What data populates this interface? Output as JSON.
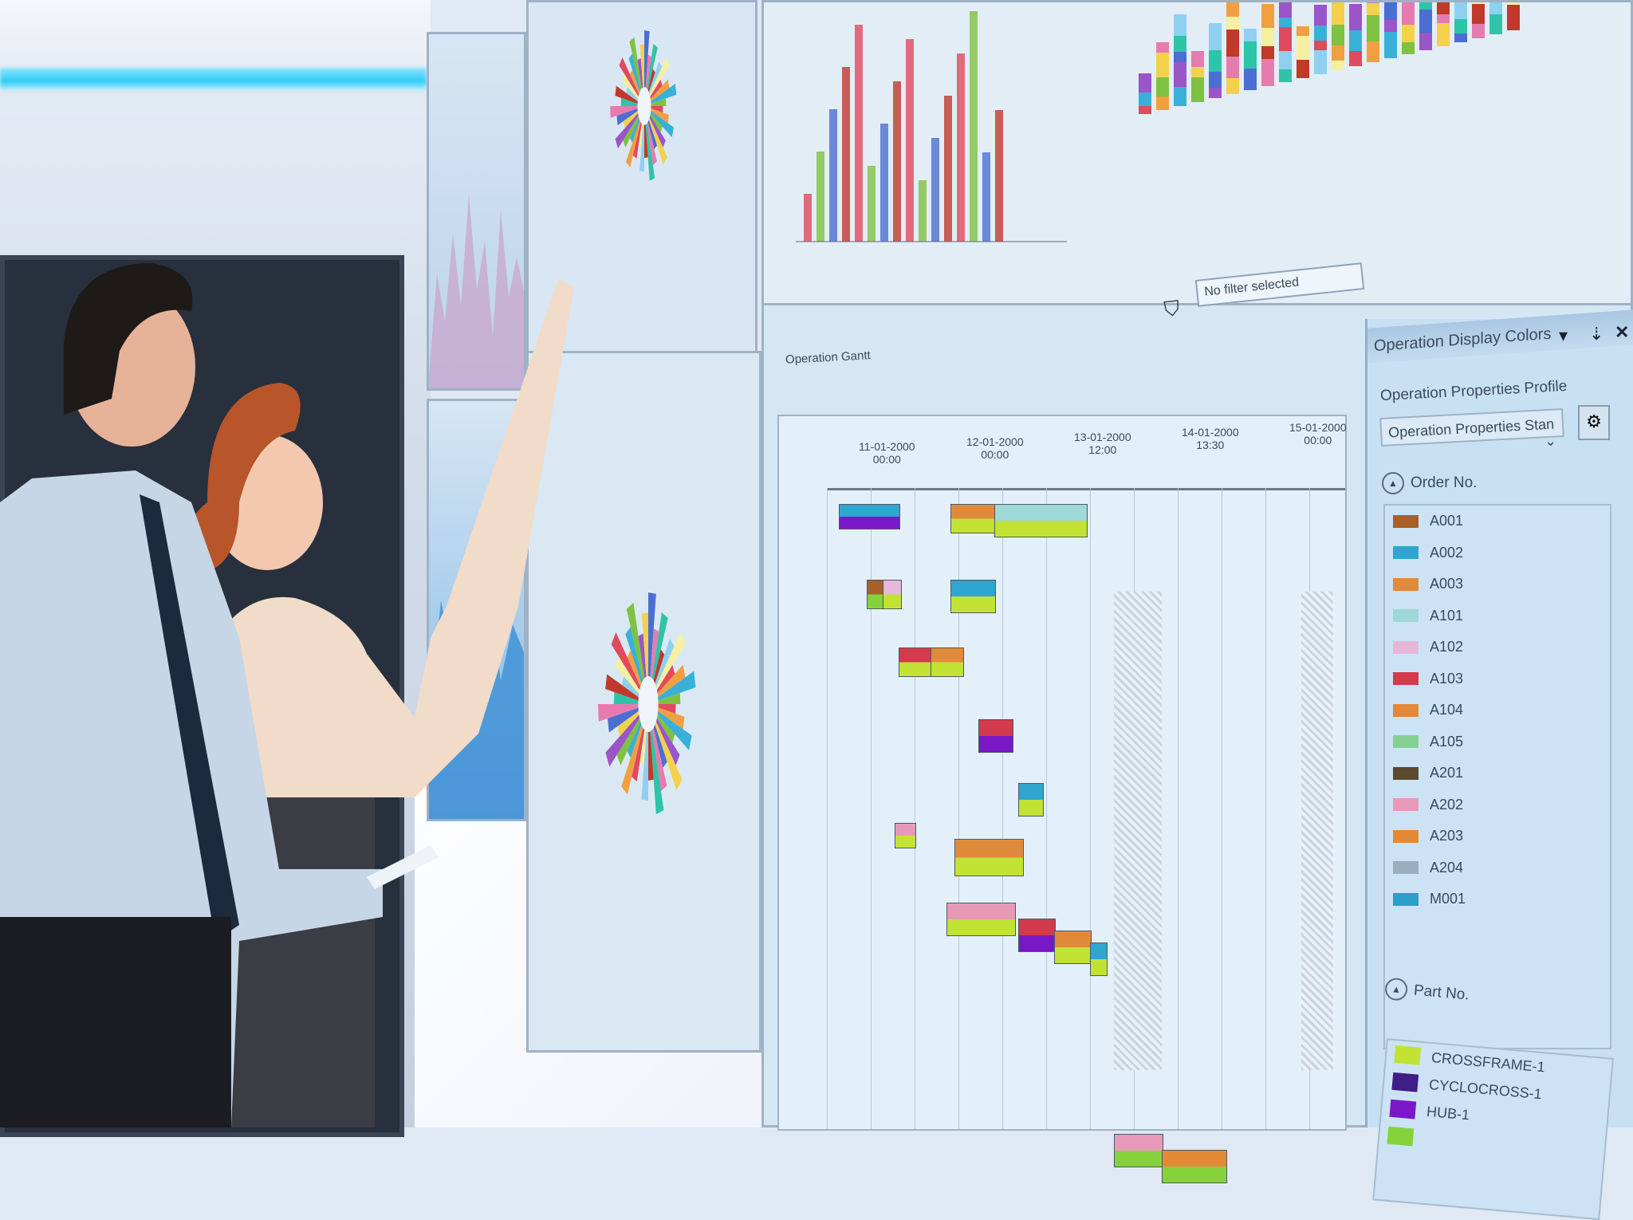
{
  "filter": {
    "value": "No filter selected"
  },
  "toolbar": {
    "title": "Operation Gantt"
  },
  "timeline": {
    "labels": [
      {
        "date": "11-01-2000",
        "time": "00:00"
      },
      {
        "date": "12-01-2000",
        "time": "00:00"
      },
      {
        "date": "13-01-2000",
        "time": "12:00"
      },
      {
        "date": "14-01-2000",
        "time": "13:30"
      },
      {
        "date": "15-01-2000",
        "time": "00:00"
      }
    ]
  },
  "panel": {
    "title": "Operation Display Colors",
    "profile_label": "Operation Properties Profile",
    "profile_value": "Operation Properties Stan",
    "order_section": "Order No.",
    "orders": [
      {
        "label": "A001",
        "color": "#a85f2a"
      },
      {
        "label": "A002",
        "color": "#2fa6cf"
      },
      {
        "label": "A003",
        "color": "#e08a3c"
      },
      {
        "label": "A101",
        "color": "#9fd8d8"
      },
      {
        "label": "A102",
        "color": "#e6b7d9"
      },
      {
        "label": "A103",
        "color": "#d33a4c"
      },
      {
        "label": "A104",
        "color": "#e2883a"
      },
      {
        "label": "A105",
        "color": "#86cf94"
      },
      {
        "label": "A201",
        "color": "#5a4a30"
      },
      {
        "label": "A202",
        "color": "#e69ab8"
      },
      {
        "label": "A203",
        "color": "#e48a36"
      },
      {
        "label": "A204",
        "color": "#9aaebe"
      },
      {
        "label": "M001",
        "color": "#2a9fc7"
      }
    ],
    "part_section": "Part No.",
    "parts": [
      {
        "label": "CROSSFRAME-1",
        "color": "#c2e234"
      },
      {
        "label": "CYCLOCROSS-1",
        "color": "#3f1d86"
      },
      {
        "label": "HUB-1",
        "color": "#7a18c8"
      },
      {
        "label": "",
        "color": "#86d23c"
      }
    ]
  },
  "icons": [
    "dropdown-icon",
    "pin-icon",
    "close-icon",
    "settings-icon",
    "collapse-icon",
    "filter-icon"
  ]
}
